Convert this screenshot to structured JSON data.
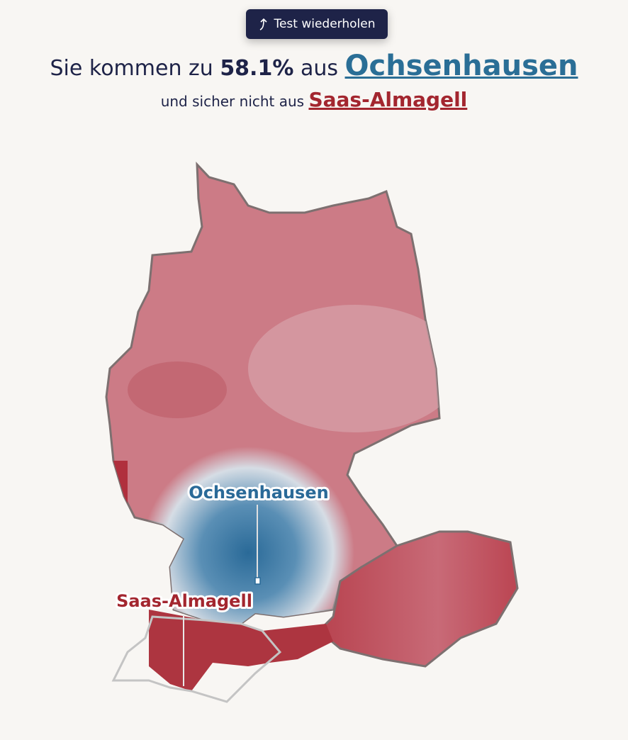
{
  "button": {
    "label": "Test wiederholen"
  },
  "headline": {
    "prefix": "Sie kommen zu",
    "percent": "58.1%",
    "middle": "aus",
    "best_place": "Ochsenhausen"
  },
  "subline": {
    "prefix": "und sicher nicht aus",
    "worst_place": "Saas-Almagell"
  },
  "map": {
    "labels": [
      {
        "text": "Ochsenhausen"
      },
      {
        "text": "Saas-Almagell"
      }
    ]
  }
}
